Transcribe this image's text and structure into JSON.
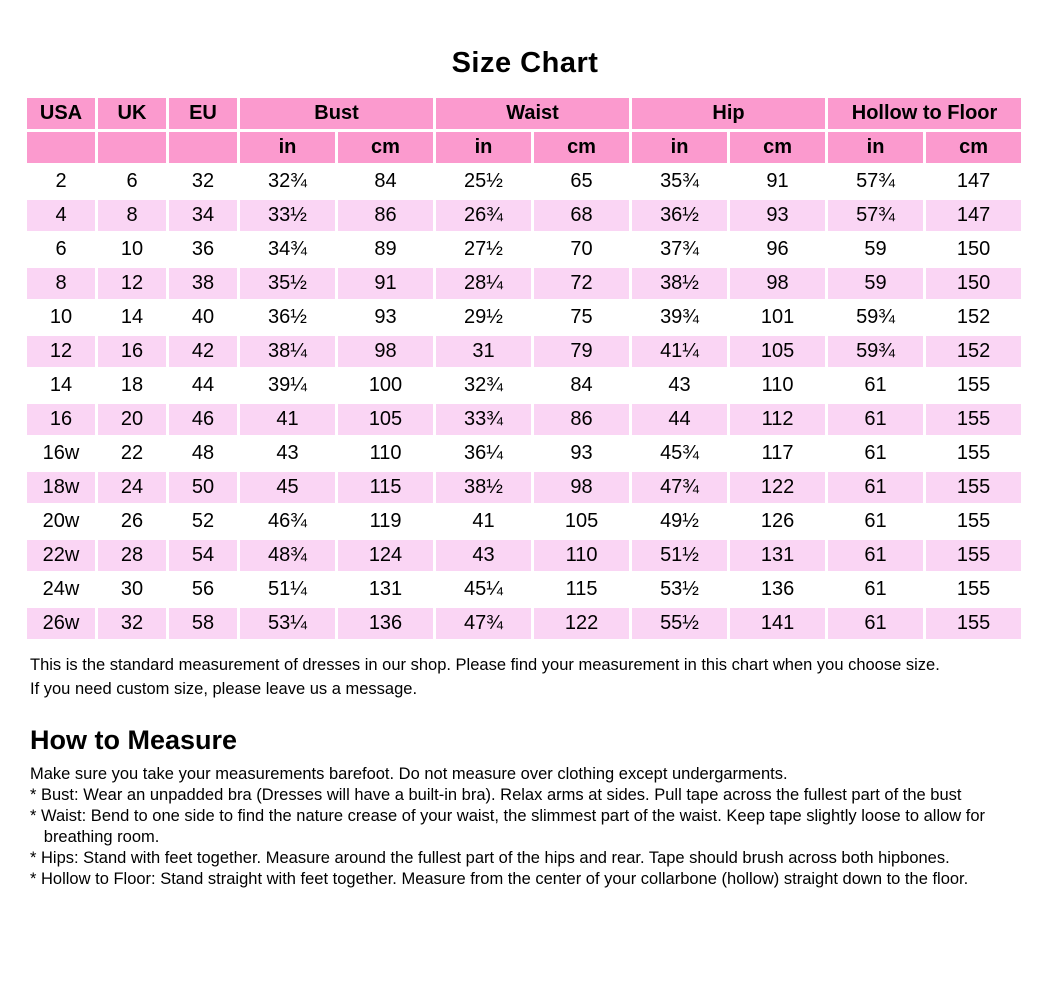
{
  "title": "Size Chart",
  "colors": {
    "header_pink": "#FB9ACE",
    "row_pink": "#FAD5F4",
    "text": "#000000"
  },
  "table": {
    "group_headers": [
      "USA",
      "UK",
      "EU",
      "Bust",
      "Waist",
      "Hip",
      "Hollow to Floor"
    ],
    "unit_row": [
      "",
      "",
      "",
      "in",
      "cm",
      "in",
      "cm",
      "in",
      "cm",
      "in",
      "cm"
    ],
    "rows": [
      [
        "2",
        "6",
        "32",
        "32¾",
        "84",
        "25½",
        "65",
        "35¾",
        "91",
        "57¾",
        "147"
      ],
      [
        "4",
        "8",
        "34",
        "33½",
        "86",
        "26¾",
        "68",
        "36½",
        "93",
        "57¾",
        "147"
      ],
      [
        "6",
        "10",
        "36",
        "34¾",
        "89",
        "27½",
        "70",
        "37¾",
        "96",
        "59",
        "150"
      ],
      [
        "8",
        "12",
        "38",
        "35½",
        "91",
        "28¼",
        "72",
        "38½",
        "98",
        "59",
        "150"
      ],
      [
        "10",
        "14",
        "40",
        "36½",
        "93",
        "29½",
        "75",
        "39¾",
        "101",
        "59¾",
        "152"
      ],
      [
        "12",
        "16",
        "42",
        "38¼",
        "98",
        "31",
        "79",
        "41¼",
        "105",
        "59¾",
        "152"
      ],
      [
        "14",
        "18",
        "44",
        "39¼",
        "100",
        "32¾",
        "84",
        "43",
        "110",
        "61",
        "155"
      ],
      [
        "16",
        "20",
        "46",
        "41",
        "105",
        "33¾",
        "86",
        "44",
        "112",
        "61",
        "155"
      ],
      [
        "16w",
        "22",
        "48",
        "43",
        "110",
        "36¼",
        "93",
        "45¾",
        "117",
        "61",
        "155"
      ],
      [
        "18w",
        "24",
        "50",
        "45",
        "115",
        "38½",
        "98",
        "47¾",
        "122",
        "61",
        "155"
      ],
      [
        "20w",
        "26",
        "52",
        "46¾",
        "119",
        "41",
        "105",
        "49½",
        "126",
        "61",
        "155"
      ],
      [
        "22w",
        "28",
        "54",
        "48¾",
        "124",
        "43",
        "110",
        "51½",
        "131",
        "61",
        "155"
      ],
      [
        "24w",
        "30",
        "56",
        "51¼",
        "131",
        "45¼",
        "115",
        "53½",
        "136",
        "61",
        "155"
      ],
      [
        "26w",
        "32",
        "58",
        "53¼",
        "136",
        "47¾",
        "122",
        "55½",
        "141",
        "61",
        "155"
      ]
    ]
  },
  "note": {
    "line1": "This is the standard measurement of dresses in our shop. Please find your measurement in this chart when you choose size.",
    "line2": "If you need custom size, please leave us a message."
  },
  "how_to_measure": {
    "heading": "How to Measure",
    "lines": [
      "Make sure you take your measurements barefoot. Do not measure over clothing except undergarments.",
      "* Bust: Wear an unpadded bra (Dresses will have a built-in bra). Relax arms at sides. Pull tape across the fullest part of the bust",
      "* Waist: Bend to one side to find the nature crease of your waist, the slimmest part of the waist. Keep tape slightly loose to allow for",
      "   breathing room.",
      "* Hips: Stand with feet together. Measure around the fullest part of the hips and rear. Tape should brush across both hipbones.",
      "* Hollow to Floor: Stand straight with feet together. Measure from the center of your collarbone (hollow) straight down to the floor."
    ]
  }
}
